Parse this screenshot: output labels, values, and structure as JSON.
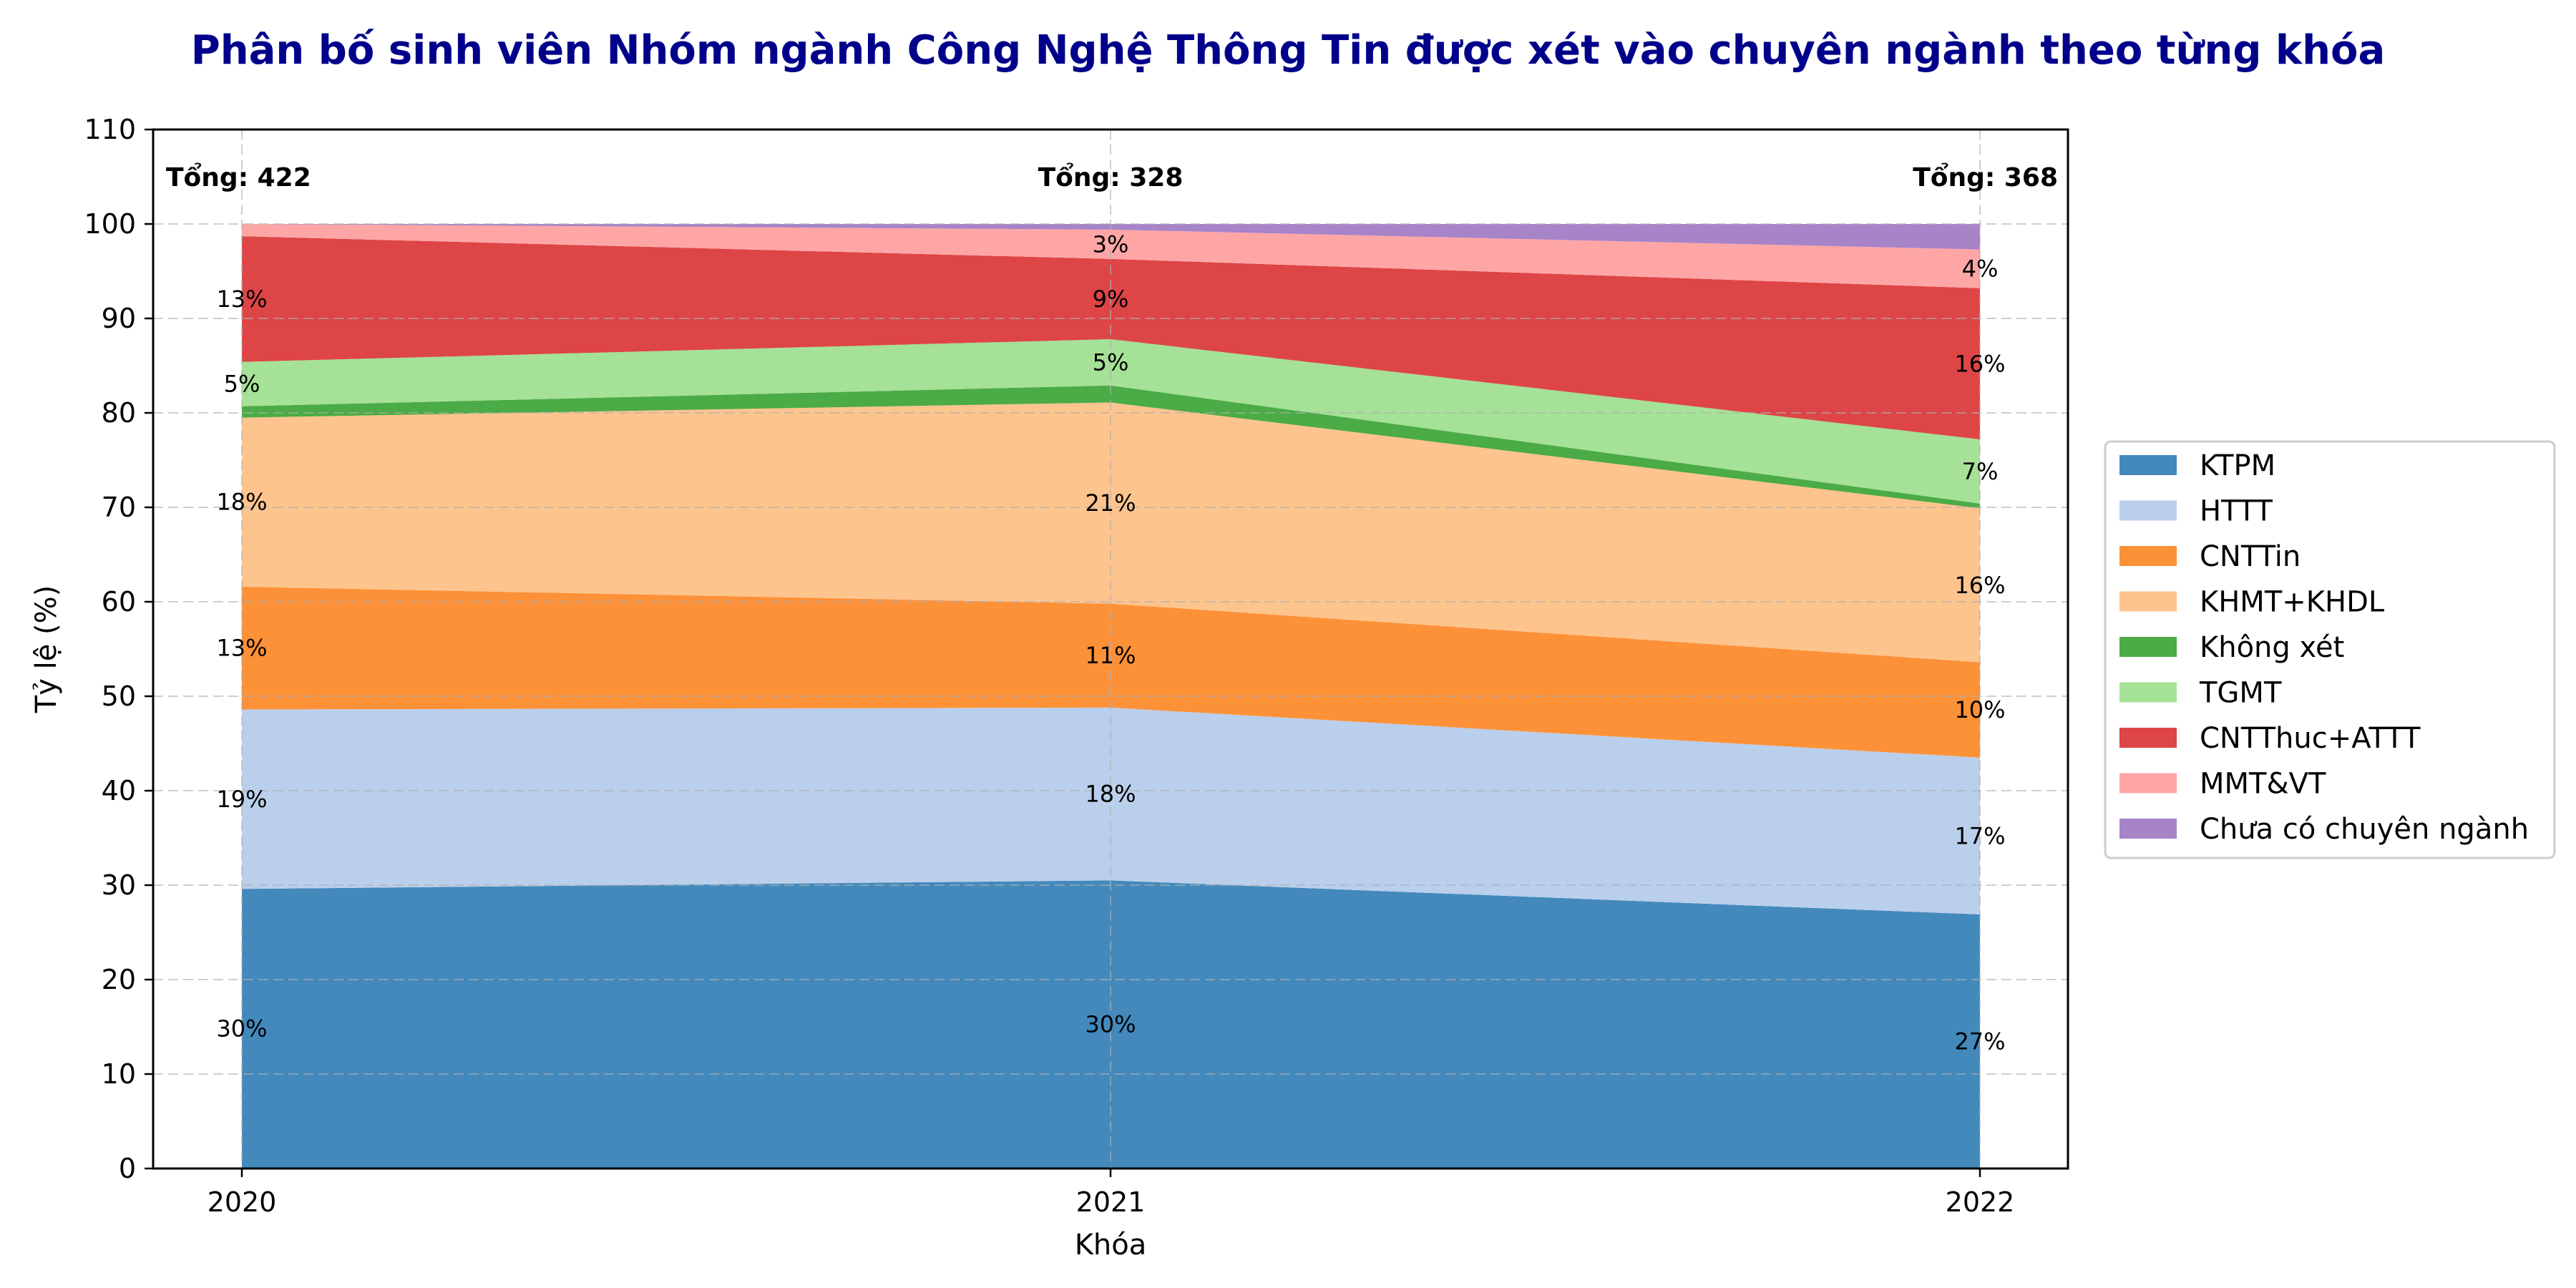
{
  "chart_data": {
    "type": "area",
    "stacked": true,
    "title": "Phân bố sinh viên Nhóm ngành Công Nghệ Thông Tin được xét vào chuyên ngành theo từng khóa",
    "xlabel": "Khóa",
    "ylabel": "Tỷ lệ (%)",
    "ylim": [
      0,
      110
    ],
    "yticks": [
      0,
      10,
      20,
      30,
      40,
      50,
      60,
      70,
      80,
      90,
      100,
      110
    ],
    "x": [
      "2020",
      "2021",
      "2022"
    ],
    "grid": true,
    "legend_position": "right",
    "totals": [
      "Tổng: 422",
      "Tổng: 328",
      "Tổng: 368"
    ],
    "series": [
      {
        "name": "KTPM",
        "color": "#4389bc",
        "values": [
          29.6,
          30.5,
          26.9
        ],
        "labels": [
          "30%",
          "30%",
          "27%"
        ]
      },
      {
        "name": "HTTT",
        "color": "#bacfeb",
        "values": [
          19.0,
          18.3,
          16.6
        ],
        "labels": [
          "19%",
          "18%",
          "17%"
        ]
      },
      {
        "name": "CNTTin",
        "color": "#fd9138",
        "values": [
          13.0,
          11.0,
          10.1
        ],
        "labels": [
          "13%",
          "11%",
          "10%"
        ]
      },
      {
        "name": "KHMT+KHDL",
        "color": "#fec48e",
        "values": [
          17.9,
          21.3,
          16.3
        ],
        "labels": [
          "18%",
          "21%",
          "16%"
        ]
      },
      {
        "name": "Không xét",
        "color": "#4bab46",
        "values": [
          1.2,
          1.8,
          0.5
        ],
        "labels": [
          "",
          "",
          ""
        ]
      },
      {
        "name": "TGMT",
        "color": "#a5e196",
        "values": [
          4.7,
          4.9,
          6.8
        ],
        "labels": [
          "5%",
          "5%",
          "7%"
        ]
      },
      {
        "name": "CNTThuc+ATTT",
        "color": "#dd4546",
        "values": [
          13.3,
          8.5,
          16.0
        ],
        "labels": [
          "13%",
          "9%",
          "16%"
        ]
      },
      {
        "name": "MMT&VT",
        "color": "#fea6a6",
        "values": [
          1.3,
          3.1,
          4.1
        ],
        "labels": [
          "",
          "3%",
          "4%"
        ]
      },
      {
        "name": "Chưa có chuyên ngành",
        "color": "#a783c8",
        "values": [
          0.0,
          0.6,
          2.7
        ],
        "labels": [
          "",
          "",
          ""
        ]
      }
    ]
  }
}
